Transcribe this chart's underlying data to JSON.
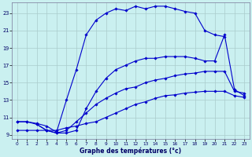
{
  "title": "Graphe des températures (°c)",
  "bg_color": "#caf0f0",
  "line_color": "#0000cc",
  "grid_color": "#aacccc",
  "xlim": [
    -0.5,
    23.5
  ],
  "ylim": [
    8.5,
    24.2
  ],
  "xticks": [
    0,
    1,
    2,
    3,
    4,
    5,
    6,
    7,
    8,
    9,
    10,
    11,
    12,
    13,
    14,
    15,
    16,
    17,
    18,
    19,
    20,
    21,
    22,
    23
  ],
  "yticks": [
    9,
    11,
    13,
    15,
    17,
    19,
    21,
    23
  ],
  "curve1_x": [
    0,
    1,
    2,
    3,
    4,
    5,
    6,
    7,
    8,
    9,
    10,
    11,
    12,
    13,
    14,
    15,
    16,
    17,
    18,
    19,
    20,
    21
  ],
  "curve1_y": [
    10.5,
    10.5,
    10.3,
    10.0,
    9.3,
    13.0,
    16.5,
    20.5,
    22.2,
    23.0,
    23.5,
    23.3,
    23.8,
    23.5,
    23.8,
    23.8,
    23.5,
    23.2,
    23.0,
    21.0,
    20.5,
    20.3
  ],
  "curve2_x": [
    2,
    3,
    4,
    5,
    6,
    7,
    8,
    9,
    10,
    11,
    12,
    13,
    14,
    15,
    16,
    17,
    18,
    19,
    20,
    21,
    22,
    23
  ],
  "curve2_y": [
    10.2,
    9.5,
    9.2,
    9.2,
    9.5,
    12.0,
    14.0,
    15.5,
    16.5,
    17.0,
    17.5,
    17.8,
    17.8,
    18.0,
    18.0,
    18.0,
    17.8,
    17.5,
    17.5,
    20.5,
    14.2,
    13.5
  ],
  "curve3_x": [
    0,
    1,
    2,
    3,
    4,
    5,
    6,
    7,
    8,
    9,
    10,
    11,
    12,
    13,
    14,
    15,
    16,
    17,
    18,
    19,
    20,
    21,
    22,
    23
  ],
  "curve3_y": [
    10.5,
    10.5,
    10.2,
    9.5,
    9.2,
    9.5,
    10.5,
    11.5,
    12.5,
    13.2,
    13.8,
    14.3,
    14.5,
    15.0,
    15.3,
    15.5,
    15.8,
    16.0,
    16.1,
    16.3,
    16.3,
    16.3,
    14.0,
    13.8
  ],
  "curve4_x": [
    0,
    1,
    2,
    3,
    4,
    5,
    6,
    7,
    8,
    9,
    10,
    11,
    12,
    13,
    14,
    15,
    16,
    17,
    18,
    19,
    20,
    21,
    22,
    23
  ],
  "curve4_y": [
    9.5,
    9.5,
    9.5,
    9.5,
    9.5,
    9.8,
    10.0,
    10.3,
    10.5,
    11.0,
    11.5,
    12.0,
    12.5,
    12.8,
    13.2,
    13.5,
    13.6,
    13.8,
    13.9,
    14.0,
    14.0,
    14.0,
    13.5,
    13.3
  ]
}
